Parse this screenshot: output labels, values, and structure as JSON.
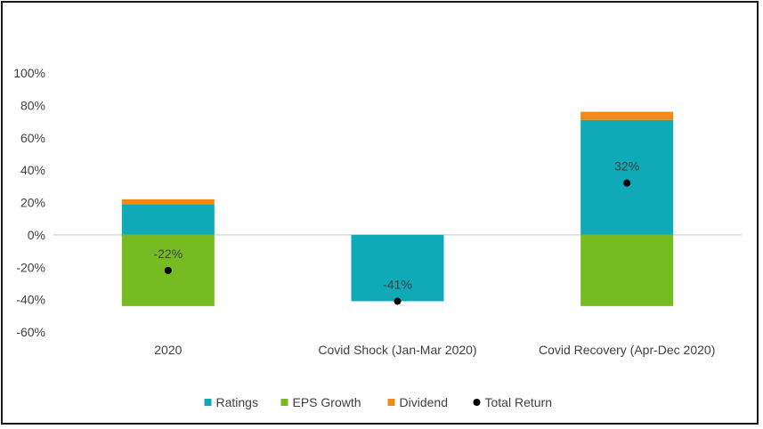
{
  "chart_data": {
    "type": "bar",
    "stacked": true,
    "categories": [
      "2020",
      "Covid Shock (Jan-Mar 2020)",
      "Covid Recovery (Apr-Dec 2020)"
    ],
    "series": [
      {
        "name": "Ratings",
        "type": "bar",
        "color": "#0fa9b8",
        "values": [
          19,
          -41,
          71
        ]
      },
      {
        "name": "EPS Growth",
        "type": "bar",
        "color": "#76bb21",
        "values": [
          -44,
          0,
          -44
        ]
      },
      {
        "name": "Dividend",
        "type": "bar",
        "color": "#f48a16",
        "values": [
          3,
          0,
          5
        ]
      },
      {
        "name": "Total Return",
        "type": "scatter",
        "color": "#000000",
        "values": [
          -22,
          -41,
          32
        ]
      }
    ],
    "data_labels": [
      "-22%",
      "-41%",
      "32%"
    ],
    "yticks": [
      "100%",
      "80%",
      "60%",
      "40%",
      "20%",
      "0%",
      "-20%",
      "-40%",
      "-60%"
    ],
    "ylim": [
      -60,
      100
    ],
    "grid": false,
    "legend_position": "bottom"
  }
}
